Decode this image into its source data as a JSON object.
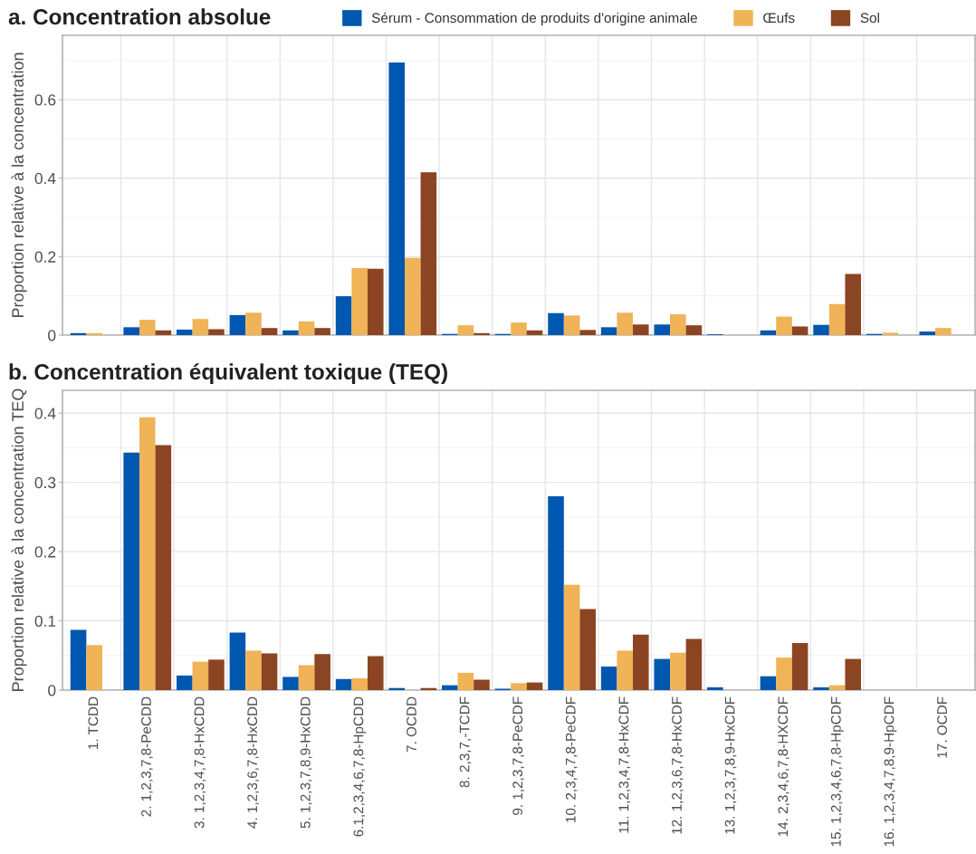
{
  "chart_data": [
    {
      "type": "bar",
      "title": "a. Concentration absolue",
      "ylabel": "Proportion relative à la concentration",
      "categories": [
        null,
        null,
        null,
        null,
        null,
        null,
        null,
        null,
        null,
        null,
        null,
        null,
        null,
        null,
        null,
        null,
        null
      ],
      "series": [
        {
          "name": "Sérum - Consommation de produits d'origine animale",
          "color": "#0057b0",
          "values": [
            0.005,
            0.02,
            0.014,
            0.051,
            0.012,
            0.099,
            0.695,
            0.003,
            0.003,
            0.056,
            0.02,
            0.027,
            0.002,
            0.012,
            0.026,
            0.003,
            0.009
          ]
        },
        {
          "name": "Œufs",
          "color": "#f0b357",
          "values": [
            0.005,
            0.039,
            0.041,
            0.057,
            0.035,
            0.171,
            0.197,
            0.025,
            0.032,
            0.05,
            0.057,
            0.053,
            0,
            0.047,
            0.079,
            0.006,
            0.018
          ]
        },
        {
          "name": "Sol",
          "color": "#8b4523",
          "values": [
            0,
            0.012,
            0.015,
            0.018,
            0.018,
            0.169,
            0.415,
            0.005,
            0.012,
            0.013,
            0.027,
            0.025,
            0,
            0.022,
            0.156,
            0,
            0
          ]
        }
      ],
      "ylim": [
        0,
        0.764
      ],
      "yticks": [
        0,
        0.2,
        0.4,
        0.6
      ],
      "grid": true,
      "legend": "top",
      "tick_labels": "y"
    },
    {
      "type": "bar",
      "title": "b. Concentration équivalent toxique (TEQ)",
      "ylabel": "Proportion relative à la concentration TEQ",
      "categories": [
        "1. TCDD",
        "2. 1,2,3,7,8-PeCDD",
        "3. 1,2,3,4,7,8-HxCDD",
        "4. 1,2,3,6,7,8-HxCDD",
        "5. 1,2,3,7,8,9-HxCDD",
        "6.1,2,3,4,6,7,8-HpCDD",
        "7. OCDD",
        "8. 2,3,7,-TCDF",
        "9. 1,2,3,7,8-PeCDF",
        "10. 2,3,4,7,8-PeCDF",
        "11. 1,2,3,4,7,8-HxCDF",
        "12. 1,2,3,6,7,8-HxCDF",
        "13. 1,2,3,7,8,9-HxCDF",
        "14. 2,3,4,6,7,8-HXCDF",
        "15. 1,2,3,4,6,7,8-HpCDF",
        "16. 1,2,3,4,7,8,9-HpCDF",
        "17. OCDF"
      ],
      "series": [
        {
          "color": "#0057b0",
          "values": [
            0.087,
            0.343,
            0.021,
            0.083,
            0.019,
            0.016,
            0.003,
            0.007,
            0.002,
            0.28,
            0.034,
            0.045,
            0.004,
            0.02,
            0.004,
            0,
            0
          ]
        },
        {
          "color": "#f0b357",
          "values": [
            0.065,
            0.394,
            0.041,
            0.057,
            0.036,
            0.017,
            0,
            0.025,
            0.01,
            0.152,
            0.057,
            0.054,
            0,
            0.047,
            0.007,
            0,
            0
          ]
        },
        {
          "color": "#8b4523",
          "values": [
            0,
            0.354,
            0.044,
            0.053,
            0.052,
            0.049,
            0.003,
            0.015,
            0.011,
            0.117,
            0.08,
            0.074,
            0,
            0.068,
            0.045,
            0,
            0
          ]
        }
      ],
      "ylim": [
        0,
        0.433
      ],
      "yticks": [
        0,
        0.1,
        0.2,
        0.3,
        0.4
      ],
      "grid": true
    }
  ]
}
